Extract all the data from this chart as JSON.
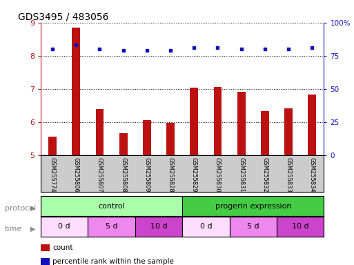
{
  "title": "GDS3495 / 483056",
  "samples": [
    "GSM255774",
    "GSM255806",
    "GSM255807",
    "GSM255808",
    "GSM255809",
    "GSM255828",
    "GSM255829",
    "GSM255830",
    "GSM255831",
    "GSM255832",
    "GSM255833",
    "GSM255834"
  ],
  "bar_values": [
    5.55,
    8.85,
    6.38,
    5.65,
    6.05,
    5.97,
    7.03,
    7.05,
    6.9,
    6.32,
    6.4,
    6.82
  ],
  "percentile_values": [
    80,
    83,
    80,
    79,
    79,
    79,
    81,
    81,
    80,
    80,
    80,
    81
  ],
  "ylim_left": [
    5,
    9
  ],
  "ylim_right": [
    0,
    100
  ],
  "yticks_left": [
    5,
    6,
    7,
    8,
    9
  ],
  "yticks_right": [
    0,
    25,
    50,
    75,
    100
  ],
  "ytick_labels_right": [
    "0",
    "25",
    "50",
    "75",
    "100%"
  ],
  "bar_color": "#bb1111",
  "dot_color": "#1111bb",
  "protocol_row": {
    "label": "protocol",
    "groups": [
      {
        "text": "control",
        "start": 0,
        "end": 6,
        "color": "#aaffaa"
      },
      {
        "text": "progerin expression",
        "start": 6,
        "end": 12,
        "color": "#44cc44"
      }
    ]
  },
  "time_row": {
    "label": "time",
    "groups": [
      {
        "text": "0 d",
        "start": 0,
        "end": 2,
        "color": "#ffddff"
      },
      {
        "text": "5 d",
        "start": 2,
        "end": 4,
        "color": "#ee88ee"
      },
      {
        "text": "10 d",
        "start": 4,
        "end": 6,
        "color": "#cc44cc"
      },
      {
        "text": "0 d",
        "start": 6,
        "end": 8,
        "color": "#ffddff"
      },
      {
        "text": "5 d",
        "start": 8,
        "end": 10,
        "color": "#ee88ee"
      },
      {
        "text": "10 d",
        "start": 10,
        "end": 12,
        "color": "#cc44cc"
      }
    ]
  },
  "legend": [
    {
      "label": "count",
      "color": "#bb1111"
    },
    {
      "label": "percentile rank within the sample",
      "color": "#1111bb"
    }
  ],
  "sample_area_color": "#cccccc",
  "fig_width": 5.13,
  "fig_height": 3.84,
  "dpi": 100
}
